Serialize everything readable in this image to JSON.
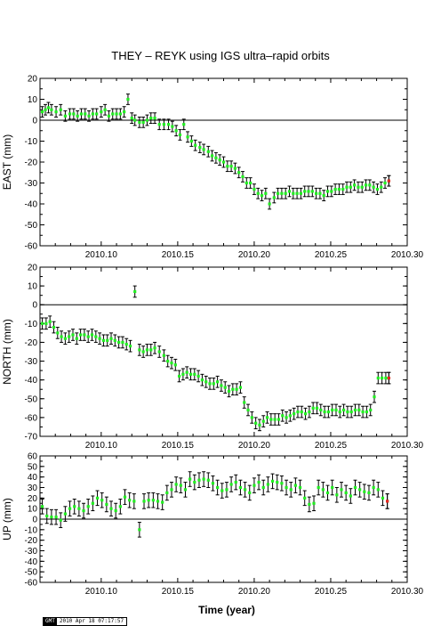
{
  "title": "THEY – REYK using IGS ultra–rapid orbits",
  "stamp": {
    "tag": "GMT",
    "date": "2010 Apr 18 07:17:57"
  },
  "colors": {
    "point": "#22ee22",
    "last_point": "#ee2222",
    "error_bar": "#000000",
    "zero_line": "#000000"
  },
  "chart_data": [
    {
      "type": "scatter",
      "panel": "east",
      "xlabel": "",
      "ylabel": "EAST (mm)",
      "xlim": [
        2010.06,
        2010.3
      ],
      "ylim": [
        -60,
        20
      ],
      "xticks": [
        "2010.10",
        "2010.15",
        "2010.20",
        "2010.25",
        "2010.30"
      ],
      "yticks": [
        "20",
        "10",
        "0",
        "-10",
        "-20",
        "-30",
        "-40",
        "-50",
        "-60"
      ],
      "error_mm": 2.5,
      "x": [
        2010.0615,
        2010.0635,
        2010.0655,
        2010.0675,
        2010.0705,
        2010.0735,
        2010.0765,
        2010.0795,
        2010.082,
        2010.0845,
        2010.087,
        2010.0895,
        2010.092,
        2010.0945,
        2010.097,
        2010.1,
        2010.1025,
        2010.105,
        2010.1075,
        2010.11,
        2010.1125,
        2010.115,
        2010.1175,
        2010.12,
        2010.122,
        2010.125,
        2010.1275,
        2010.13,
        2010.1325,
        2010.135,
        2010.138,
        2010.141,
        2010.144,
        2010.1465,
        2010.149,
        2010.1515,
        2010.154,
        2010.1565,
        2010.159,
        2010.1615,
        2010.1645,
        2010.167,
        2010.17,
        2010.1725,
        2010.175,
        2010.1775,
        2010.18,
        2010.1825,
        2010.185,
        2010.1875,
        2010.19,
        2010.1925,
        2010.195,
        2010.1975,
        2010.2,
        2010.2025,
        2010.205,
        2010.2075,
        2010.21,
        2010.213,
        2010.2155,
        2010.218,
        2010.2205,
        2010.223,
        2010.2255,
        2010.228,
        2010.2305,
        2010.233,
        2010.2355,
        2010.238,
        2010.2405,
        2010.243,
        2010.2455,
        2010.248,
        2010.2505,
        2010.253,
        2010.2555,
        2010.258,
        2010.2605,
        2010.263,
        2010.2655,
        2010.268,
        2010.2705,
        2010.273,
        2010.2755,
        2010.278,
        2010.2805,
        2010.283,
        2010.2855,
        2010.288
      ],
      "y": [
        4,
        5,
        6,
        5,
        4,
        5,
        2,
        3,
        3,
        2,
        3,
        3,
        2,
        3,
        3,
        4,
        5,
        2,
        3,
        3,
        3,
        4,
        10,
        1,
        0,
        -1,
        -1,
        0,
        1,
        1,
        -2,
        -2,
        -2,
        -3,
        -5,
        -7,
        -2,
        -8,
        -10,
        -12,
        -13,
        -14,
        -15,
        -17,
        -18,
        -19,
        -20,
        -22,
        -22,
        -23,
        -25,
        -27,
        -30,
        -30,
        -33,
        -35,
        -36,
        -35,
        -40,
        -37,
        -35,
        -35,
        -35,
        -34,
        -35,
        -35,
        -35,
        -34,
        -34,
        -34,
        -35,
        -35,
        -36,
        -34,
        -34,
        -33,
        -33,
        -33,
        -32,
        -32,
        -31,
        -32,
        -32,
        -31,
        -31,
        -32,
        -33,
        -32,
        -30,
        -29
      ],
      "x_last": 2010.288,
      "y_last": -29
    },
    {
      "type": "scatter",
      "panel": "north",
      "xlabel": "",
      "ylabel": "NORTH (mm)",
      "xlim": [
        2010.06,
        2010.3
      ],
      "ylim": [
        -70,
        20
      ],
      "xticks": [
        "2010.10",
        "2010.15",
        "2010.20",
        "2010.25",
        "2010.30"
      ],
      "yticks": [
        "20",
        "10",
        "0",
        "-10",
        "-20",
        "-30",
        "-40",
        "-50",
        "-60",
        "-70"
      ],
      "error_mm": 3,
      "x": [
        2010.0615,
        2010.064,
        2010.0665,
        2010.069,
        2010.0715,
        2010.074,
        2010.0765,
        2010.079,
        2010.0815,
        2010.084,
        2010.0865,
        2010.089,
        2010.0915,
        2010.094,
        2010.0965,
        2010.099,
        2010.1015,
        2010.104,
        2010.1065,
        2010.109,
        2010.1115,
        2010.114,
        2010.1165,
        2010.119,
        2010.122,
        2010.125,
        2010.1275,
        2010.13,
        2010.1325,
        2010.135,
        2010.138,
        2010.141,
        2010.1435,
        2010.146,
        2010.1485,
        2010.151,
        2010.1535,
        2010.156,
        2010.1585,
        2010.161,
        2010.1635,
        2010.166,
        2010.1685,
        2010.171,
        2010.1735,
        2010.176,
        2010.1785,
        2010.181,
        2010.1835,
        2010.186,
        2010.1885,
        2010.191,
        2010.1935,
        2010.196,
        2010.1985,
        2010.201,
        2010.2035,
        2010.206,
        2010.2085,
        2010.211,
        2010.2135,
        2010.216,
        2010.2185,
        2010.221,
        2010.2235,
        2010.226,
        2010.2285,
        2010.231,
        2010.2335,
        2010.236,
        2010.2385,
        2010.241,
        2010.2435,
        2010.246,
        2010.2485,
        2010.251,
        2010.2535,
        2010.256,
        2010.2585,
        2010.261,
        2010.2635,
        2010.266,
        2010.2685,
        2010.271,
        2010.2735,
        2010.276,
        2010.2785,
        2010.281,
        2010.2835,
        2010.286,
        2010.288
      ],
      "y": [
        -10,
        -10,
        -9,
        -12,
        -15,
        -17,
        -18,
        -17,
        -16,
        -18,
        -16,
        -16,
        -17,
        -16,
        -17,
        -18,
        -19,
        -19,
        -18,
        -19,
        -20,
        -20,
        -21,
        -22,
        7,
        -24,
        -25,
        -24,
        -24,
        -23,
        -25,
        -27,
        -30,
        -31,
        -32,
        -38,
        -37,
        -36,
        -37,
        -37,
        -38,
        -40,
        -41,
        -42,
        -42,
        -41,
        -43,
        -44,
        -46,
        -45,
        -45,
        -44,
        -52,
        -56,
        -60,
        -63,
        -64,
        -62,
        -60,
        -61,
        -61,
        -61,
        -59,
        -60,
        -59,
        -58,
        -57,
        -57,
        -58,
        -57,
        -55,
        -55,
        -56,
        -57,
        -57,
        -56,
        -56,
        -57,
        -56,
        -57,
        -57,
        -56,
        -56,
        -57,
        -57,
        -56,
        -49,
        -39,
        -39,
        -39,
        -39
      ],
      "x_last": 2010.288,
      "y_last": -39
    },
    {
      "type": "scatter",
      "panel": "up",
      "xlabel": "Time (year)",
      "ylabel": "UP (mm)",
      "xlim": [
        2010.06,
        2010.3
      ],
      "ylim": [
        -60,
        60
      ],
      "xticks": [
        "2010.10",
        "2010.15",
        "2010.20",
        "2010.25",
        "2010.30"
      ],
      "yticks": [
        "60",
        "50",
        "40",
        "30",
        "20",
        "10",
        "0",
        "-10",
        "-20",
        "-30",
        "-40",
        "-50",
        "-60"
      ],
      "error_mm": 7,
      "x": [
        2010.0615,
        2010.0645,
        2010.0675,
        2010.0705,
        2010.0735,
        2010.0765,
        2010.0795,
        2010.0825,
        2010.0855,
        2010.0885,
        2010.0915,
        2010.0945,
        2010.0975,
        2010.1005,
        2010.1035,
        2010.1065,
        2010.1095,
        2010.1125,
        2010.1155,
        2010.1185,
        2010.1215,
        2010.125,
        2010.128,
        2010.131,
        2010.134,
        2010.137,
        2010.14,
        2010.143,
        2010.146,
        2010.149,
        2010.152,
        2010.155,
        2010.158,
        2010.161,
        2010.164,
        2010.167,
        2010.17,
        2010.173,
        2010.176,
        2010.179,
        2010.182,
        2010.185,
        2010.188,
        2010.191,
        2010.194,
        2010.197,
        2010.2,
        2010.203,
        2010.206,
        2010.209,
        2010.212,
        2010.215,
        2010.218,
        2010.221,
        2010.224,
        2010.227,
        2010.23,
        2010.233,
        2010.236,
        2010.239,
        2010.242,
        2010.245,
        2010.248,
        2010.251,
        2010.254,
        2010.257,
        2010.26,
        2010.263,
        2010.266,
        2010.269,
        2010.272,
        2010.275,
        2010.278,
        2010.281,
        2010.284,
        2010.287
      ],
      "y": [
        12,
        3,
        2,
        2,
        -1,
        5,
        10,
        12,
        10,
        8,
        12,
        15,
        20,
        18,
        14,
        10,
        8,
        12,
        21,
        18,
        17,
        -10,
        17,
        18,
        18,
        17,
        16,
        25,
        28,
        33,
        32,
        28,
        38,
        35,
        37,
        38,
        37,
        34,
        30,
        27,
        28,
        33,
        35,
        30,
        28,
        25,
        32,
        35,
        30,
        33,
        36,
        35,
        34,
        30,
        28,
        32,
        30,
        20,
        14,
        15,
        30,
        28,
        25,
        30,
        23,
        28,
        25,
        22,
        30,
        28,
        26,
        25,
        30,
        28,
        20,
        17
      ],
      "x_last": 2010.287,
      "y_last": 17
    }
  ]
}
